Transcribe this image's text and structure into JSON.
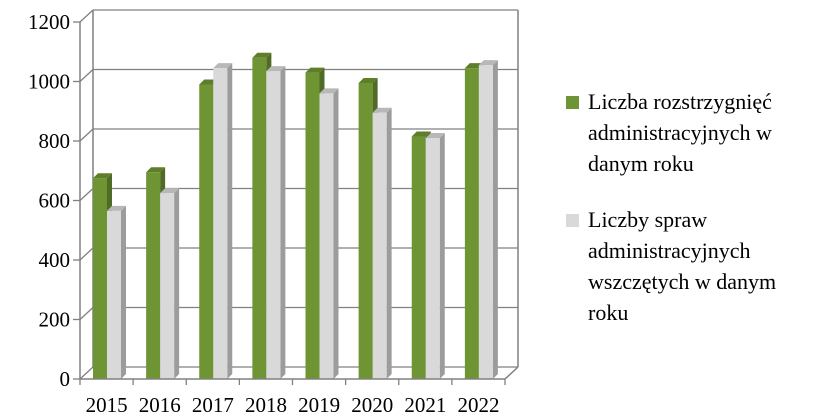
{
  "chart_data": {
    "type": "bar",
    "style": "3d-clustered-column",
    "categories": [
      "2015",
      "2016",
      "2017",
      "2018",
      "2019",
      "2020",
      "2021",
      "2022"
    ],
    "series": [
      {
        "name": "Liczba rozstrzygnięć administracyjnych w danym roku",
        "color": "#6e9434",
        "values": [
          675,
          695,
          990,
          1080,
          1030,
          995,
          815,
          1045
        ]
      },
      {
        "name": "Liczby spraw administracyjnych wszczętych w danym roku",
        "color": "#d9d9d9",
        "values": [
          565,
          625,
          1045,
          1035,
          960,
          895,
          810,
          1055
        ]
      }
    ],
    "y_ticks": [
      "0",
      "200",
      "400",
      "600",
      "800",
      "1000",
      "1200"
    ],
    "ylim": [
      0,
      1200
    ],
    "grid": true,
    "legend_position": "right",
    "title": "",
    "xlabel": "",
    "ylabel": ""
  }
}
